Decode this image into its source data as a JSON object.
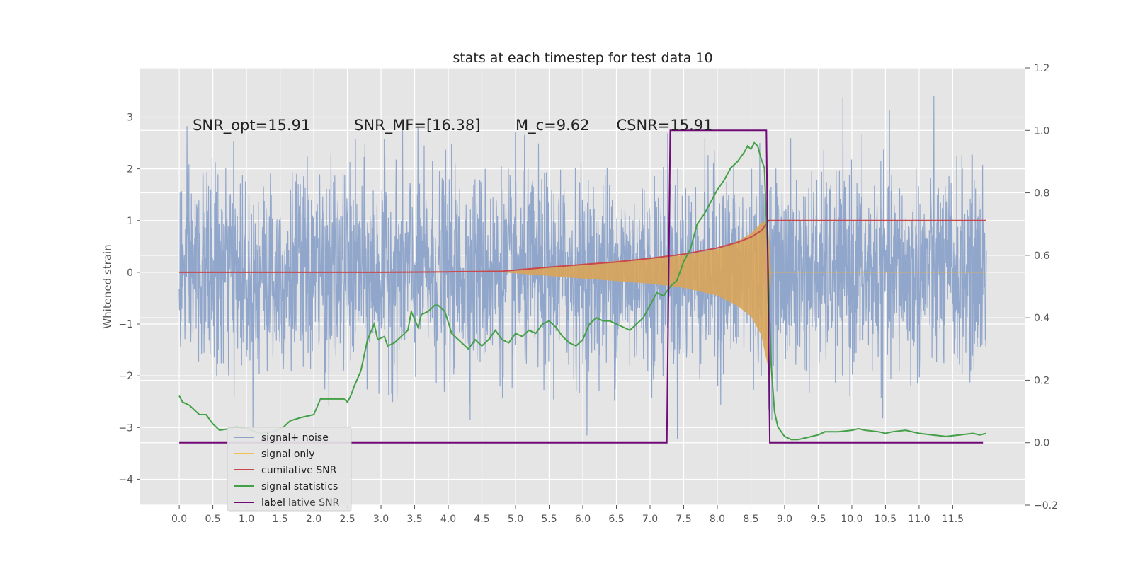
{
  "chart_data": {
    "type": "line",
    "title": "stats at each timestep for test data 10",
    "xlabel": "",
    "ylabel": "Whitened strain",
    "xlim": [
      -0.58,
      12.58
    ],
    "ylim": [
      -4.5,
      3.95
    ],
    "y2lim": [
      -0.2,
      1.2
    ],
    "grid": true,
    "x_ticks": [
      "0.0",
      "0.5",
      "1.0",
      "1.5",
      "2.0",
      "2.5",
      "3.0",
      "3.5",
      "4.0",
      "4.5",
      "5.0",
      "5.5",
      "6.0",
      "6.5",
      "7.0",
      "7.5",
      "8.0",
      "8.5",
      "9.0",
      "9.5",
      "10.0",
      "10.5",
      "11.0",
      "11.5"
    ],
    "y_ticks": [
      "3",
      "2",
      "1",
      "0",
      "−1",
      "−2",
      "−3",
      "−4"
    ],
    "y2_ticks": [
      "1.2",
      "1.0",
      "0.8",
      "0.6",
      "0.4",
      "0.2",
      "0.0",
      "−0.2"
    ],
    "annotations": [
      {
        "text": "SNR_opt=15.91",
        "x": 0.2,
        "y": 2.75
      },
      {
        "text": "SNR_MF=[16.38]",
        "x": 2.6,
        "y": 2.75
      },
      {
        "text": "M_c=9.62",
        "x": 5.0,
        "y": 2.75
      },
      {
        "text": "CSNR=15.91",
        "x": 6.5,
        "y": 2.75
      }
    ],
    "legend": {
      "placement": "lower-left",
      "entries": [
        {
          "label": "signal+ noise",
          "color": "#8ca2c9"
        },
        {
          "label": "signal only",
          "color": "#eec04f"
        },
        {
          "label": "cumilative SNR",
          "color": "#c8494c"
        },
        {
          "label": "signal statistics",
          "color": "#44a047"
        },
        {
          "label": "label",
          "color": "#6f0a77"
        }
      ],
      "ghost_text": "lative SNR"
    },
    "series": [
      {
        "name": "signal+ noise",
        "axis": "left",
        "style": "noise",
        "x_range": [
          0.0,
          12.0
        ],
        "typical_amplitude": 1.0,
        "min": -4.1,
        "max": 3.6
      },
      {
        "name": "signal only",
        "axis": "left",
        "style": "chirp-envelope",
        "x": [
          0.0,
          4.8,
          5.5,
          6.0,
          6.5,
          7.0,
          7.5,
          8.0,
          8.3,
          8.5,
          8.65,
          8.75,
          8.8,
          12.0
        ],
        "upper": [
          0.0,
          0.0,
          0.1,
          0.16,
          0.22,
          0.27,
          0.33,
          0.45,
          0.6,
          0.75,
          0.95,
          1.0,
          0.0,
          0.0
        ],
        "lower": [
          0.0,
          0.0,
          -0.07,
          -0.12,
          -0.17,
          -0.22,
          -0.3,
          -0.45,
          -0.65,
          -0.85,
          -1.2,
          -1.8,
          0.0,
          0.0
        ]
      },
      {
        "name": "cumilative SNR",
        "axis": "left",
        "x": [
          0.0,
          1.0,
          2.0,
          3.0,
          4.0,
          4.8,
          5.5,
          6.0,
          6.5,
          7.0,
          7.5,
          8.0,
          8.3,
          8.5,
          8.65,
          8.72,
          8.75,
          8.76,
          12.0
        ],
        "values": [
          0.0,
          0.0,
          0.0,
          0.0,
          0.01,
          0.02,
          0.1,
          0.15,
          0.2,
          0.27,
          0.35,
          0.47,
          0.58,
          0.68,
          0.8,
          0.92,
          0.97,
          1.0,
          1.0
        ]
      },
      {
        "name": "signal statistics",
        "axis": "right",
        "x": [
          0.0,
          0.05,
          0.15,
          0.25,
          0.3,
          0.4,
          0.5,
          0.55,
          0.6,
          0.75,
          0.85,
          1.0,
          1.2,
          1.4,
          1.55,
          1.65,
          1.8,
          2.0,
          2.1,
          2.2,
          2.3,
          2.45,
          2.5,
          2.55,
          2.6,
          2.7,
          2.8,
          2.9,
          2.95,
          3.05,
          3.1,
          3.2,
          3.35,
          3.4,
          3.45,
          3.55,
          3.6,
          3.7,
          3.8,
          3.85,
          3.95,
          4.05,
          4.1,
          4.2,
          4.3,
          4.4,
          4.5,
          4.6,
          4.7,
          4.8,
          4.9,
          5.0,
          5.1,
          5.2,
          5.3,
          5.4,
          5.5,
          5.6,
          5.7,
          5.8,
          5.9,
          6.0,
          6.1,
          6.2,
          6.3,
          6.4,
          6.5,
          6.6,
          6.7,
          6.8,
          6.9,
          7.0,
          7.1,
          7.2,
          7.3,
          7.4,
          7.5,
          7.6,
          7.7,
          7.8,
          7.9,
          8.0,
          8.1,
          8.2,
          8.3,
          8.4,
          8.45,
          8.5,
          8.55,
          8.6,
          8.65,
          8.7,
          8.75,
          8.8,
          8.85,
          8.9,
          9.0,
          9.1,
          9.2,
          9.3,
          9.4,
          9.5,
          9.6,
          9.8,
          10.0,
          10.1,
          10.2,
          10.4,
          10.5,
          10.6,
          10.8,
          11.0,
          11.2,
          11.4,
          11.6,
          11.8,
          11.9,
          12.0
        ],
        "values": [
          0.15,
          0.13,
          0.12,
          0.1,
          0.09,
          0.09,
          0.06,
          0.05,
          0.04,
          0.045,
          0.05,
          0.045,
          0.03,
          0.035,
          0.05,
          0.07,
          0.08,
          0.09,
          0.14,
          0.14,
          0.14,
          0.14,
          0.13,
          0.15,
          0.18,
          0.23,
          0.33,
          0.38,
          0.33,
          0.34,
          0.31,
          0.32,
          0.35,
          0.36,
          0.42,
          0.37,
          0.41,
          0.42,
          0.44,
          0.44,
          0.42,
          0.35,
          0.34,
          0.32,
          0.3,
          0.33,
          0.31,
          0.33,
          0.36,
          0.33,
          0.32,
          0.35,
          0.34,
          0.36,
          0.35,
          0.38,
          0.39,
          0.37,
          0.34,
          0.32,
          0.31,
          0.33,
          0.38,
          0.4,
          0.39,
          0.39,
          0.38,
          0.37,
          0.36,
          0.38,
          0.4,
          0.44,
          0.48,
          0.47,
          0.5,
          0.52,
          0.58,
          0.62,
          0.7,
          0.73,
          0.77,
          0.81,
          0.84,
          0.88,
          0.9,
          0.93,
          0.95,
          0.94,
          0.96,
          0.95,
          0.91,
          0.88,
          0.6,
          0.25,
          0.1,
          0.05,
          0.02,
          0.01,
          0.01,
          0.015,
          0.02,
          0.025,
          0.035,
          0.035,
          0.04,
          0.045,
          0.04,
          0.035,
          0.03,
          0.035,
          0.04,
          0.03,
          0.025,
          0.02,
          0.025,
          0.03,
          0.025,
          0.03
        ]
      },
      {
        "name": "label",
        "axis": "right",
        "x": [
          0.0,
          7.25,
          7.3,
          8.73,
          8.78,
          11.95
        ],
        "values": [
          0.0,
          0.0,
          1.0,
          1.0,
          0.0,
          0.0
        ]
      }
    ]
  },
  "colors": {
    "plot_background": "#e5e5e5",
    "grid": "#ffffff",
    "signal_noise": "#8ca2c9",
    "signal_only": "#d9a55a",
    "cumulative_snr": "#c8494c",
    "signal_statistics": "#44a047",
    "label": "#6f0a77"
  }
}
